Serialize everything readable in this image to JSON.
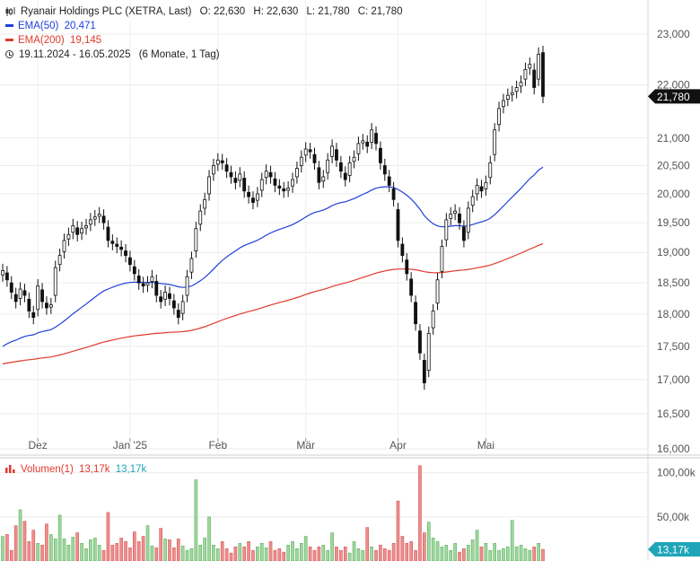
{
  "header": {
    "title": "Ryanair Holdings PLC (XETRA, Last)",
    "o_label": "O:",
    "o_value": "22,630",
    "h_label": "H:",
    "h_value": "22,630",
    "l_label": "L:",
    "l_value": "21,780",
    "c_label": "C:",
    "c_value": "21,780",
    "ema50_label": "EMA(50)",
    "ema50_value": "20,471",
    "ema200_label": "EMA(200)",
    "ema200_value": "19,145",
    "range": "19.11.2024 - 16.05.2025",
    "range_note": "(6 Monate, 1 Tag)",
    "volume_label": "Volumen(1)",
    "volume_value1": "13,17k",
    "volume_value2": "13,17k"
  },
  "colors": {
    "up": "#ffffff",
    "down": "#111111",
    "ema50": "#1f3fd9",
    "ema200": "#e0392b",
    "vol_up": "#9fd89f",
    "vol_down": "#f08d8d",
    "last_price_tag": "#111111",
    "volume_tag": "#1fa5b8"
  },
  "chart_data": [
    {
      "type": "candlestick",
      "title": "Ryanair Holdings PLC (XETRA, Last)",
      "x_tick_labels": [
        "Dez",
        "Jan '25",
        "Feb",
        "Mär",
        "Apr",
        "Mai"
      ],
      "y_tick_labels": [
        "16,000",
        "16,500",
        "17,000",
        "17,500",
        "18,000",
        "18,500",
        "19,000",
        "19,500",
        "20,000",
        "20,500",
        "21,000",
        "22,000",
        "23,000"
      ],
      "y_scale": "log",
      "ylim": [
        16.0,
        23.5
      ],
      "last_price_label": "21,780",
      "series": [
        {
          "name": "EMA(50)",
          "start": 17.45,
          "end": 20.471
        },
        {
          "name": "EMA(200)",
          "start": 17.22,
          "end": 19.145
        }
      ],
      "closes": [
        18.7,
        18.55,
        18.35,
        18.2,
        18.4,
        18.3,
        18.05,
        17.95,
        18.45,
        18.2,
        18.1,
        18.15,
        18.75,
        18.95,
        19.2,
        19.3,
        19.45,
        19.3,
        19.4,
        19.45,
        19.55,
        19.6,
        19.65,
        19.5,
        19.2,
        19.15,
        19.1,
        19.05,
        18.95,
        18.8,
        18.65,
        18.5,
        18.45,
        18.5,
        18.6,
        18.3,
        18.2,
        18.35,
        18.25,
        18.1,
        17.95,
        18.2,
        18.6,
        18.9,
        19.4,
        19.7,
        19.9,
        20.3,
        20.5,
        20.6,
        20.55,
        20.4,
        20.3,
        20.2,
        20.35,
        20.05,
        19.95,
        19.85,
        20.0,
        20.25,
        20.4,
        20.3,
        20.15,
        20.1,
        20.05,
        20.1,
        20.25,
        20.45,
        20.65,
        20.8,
        20.75,
        20.55,
        20.2,
        20.3,
        20.6,
        20.85,
        20.6,
        20.4,
        20.25,
        20.55,
        20.65,
        20.9,
        20.95,
        20.85,
        21.15,
        20.9,
        20.55,
        20.35,
        20.15,
        19.9,
        19.2,
        18.95,
        18.65,
        18.3,
        17.85,
        17.4,
        16.95,
        17.7,
        18.05,
        18.55,
        19.1,
        19.55,
        19.65,
        19.7,
        19.5,
        19.2,
        19.75,
        19.95,
        20.15,
        20.05,
        20.2,
        20.55,
        21.15,
        21.55,
        21.7,
        21.8,
        21.85,
        21.95,
        22.05,
        22.3,
        22.4,
        21.95,
        22.6,
        21.78
      ]
    },
    {
      "type": "bar",
      "title": "Volumen(1)",
      "y_tick_labels": [
        "50,00k",
        "100,00k"
      ],
      "ylim": [
        0,
        115000
      ],
      "last_value_label": "13,17k",
      "values": [
        28000,
        30000,
        12000,
        40000,
        58000,
        45000,
        22000,
        35000,
        20000,
        18000,
        42000,
        30000,
        25000,
        52000,
        25000,
        18000,
        27000,
        32000,
        20000,
        14000,
        24000,
        26000,
        18000,
        12000,
        55000,
        18000,
        20000,
        26000,
        22000,
        15000,
        33000,
        22000,
        28000,
        40000,
        17000,
        15000,
        37000,
        25000,
        24000,
        15000,
        25000,
        17000,
        12000,
        14000,
        92000,
        18000,
        26000,
        50000,
        18000,
        14000,
        22000,
        14000,
        9000,
        16000,
        20000,
        16000,
        22000,
        12000,
        16000,
        20000,
        15000,
        22000,
        12000,
        14000,
        10000,
        18000,
        22000,
        14000,
        20000,
        28000,
        16000,
        12000,
        16000,
        18000,
        12000,
        32000,
        16000,
        12000,
        16000,
        9000,
        22000,
        14000,
        12000,
        38000,
        16000,
        12000,
        18000,
        14000,
        12000,
        20000,
        68000,
        28000,
        20000,
        22000,
        12000,
        108000,
        32000,
        44000,
        26000,
        22000,
        16000,
        18000,
        12000,
        20000,
        10000,
        14000,
        18000,
        24000,
        35000,
        16000,
        20000,
        12000,
        20000,
        12000,
        14000,
        16000,
        46000,
        16000,
        18000,
        14000,
        12000,
        16000,
        20000,
        13170
      ],
      "up_down": "follows candle direction"
    }
  ]
}
